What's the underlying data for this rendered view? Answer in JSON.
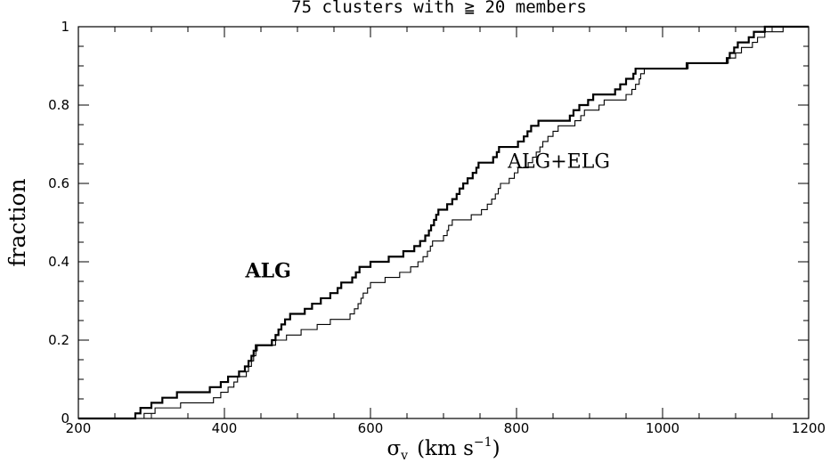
{
  "chart_data": {
    "type": "line",
    "title": "75 clusters with ≧ 20 members",
    "xlabel": {
      "symbol": "σ",
      "subscript": "v",
      "units_open": "(km s",
      "superscript": "−1",
      "units_close": ")"
    },
    "ylabel": "fraction",
    "xlim": [
      200,
      1200
    ],
    "ylim": [
      0,
      1
    ],
    "x_ticks": [
      "200",
      "400",
      "600",
      "800",
      "1000",
      "1200"
    ],
    "y_ticks": [
      "0",
      "0.2",
      "0.4",
      "0.6",
      "0.8",
      "1"
    ],
    "grid": false,
    "series": [
      {
        "name": "ALG",
        "style": "thick",
        "step": true,
        "points": [
          [
            200,
            0
          ],
          [
            278,
            0
          ],
          [
            278,
            0.013
          ],
          [
            285,
            0.013
          ],
          [
            285,
            0.027
          ],
          [
            300,
            0.027
          ],
          [
            300,
            0.04
          ],
          [
            315,
            0.04
          ],
          [
            315,
            0.053
          ],
          [
            335,
            0.053
          ],
          [
            335,
            0.067
          ],
          [
            380,
            0.067
          ],
          [
            380,
            0.08
          ],
          [
            395,
            0.08
          ],
          [
            395,
            0.093
          ],
          [
            405,
            0.093
          ],
          [
            405,
            0.107
          ],
          [
            420,
            0.107
          ],
          [
            420,
            0.12
          ],
          [
            428,
            0.12
          ],
          [
            428,
            0.133
          ],
          [
            433,
            0.133
          ],
          [
            433,
            0.147
          ],
          [
            437,
            0.147
          ],
          [
            437,
            0.16
          ],
          [
            440,
            0.16
          ],
          [
            440,
            0.173
          ],
          [
            443,
            0.173
          ],
          [
            443,
            0.187
          ],
          [
            465,
            0.187
          ],
          [
            465,
            0.2
          ],
          [
            470,
            0.2
          ],
          [
            470,
            0.213
          ],
          [
            474,
            0.213
          ],
          [
            474,
            0.227
          ],
          [
            478,
            0.227
          ],
          [
            478,
            0.24
          ],
          [
            483,
            0.24
          ],
          [
            483,
            0.253
          ],
          [
            490,
            0.253
          ],
          [
            490,
            0.267
          ],
          [
            510,
            0.267
          ],
          [
            510,
            0.28
          ],
          [
            520,
            0.28
          ],
          [
            520,
            0.293
          ],
          [
            532,
            0.293
          ],
          [
            532,
            0.307
          ],
          [
            545,
            0.307
          ],
          [
            545,
            0.32
          ],
          [
            555,
            0.32
          ],
          [
            555,
            0.333
          ],
          [
            560,
            0.333
          ],
          [
            560,
            0.347
          ],
          [
            575,
            0.347
          ],
          [
            575,
            0.36
          ],
          [
            580,
            0.36
          ],
          [
            580,
            0.373
          ],
          [
            585,
            0.373
          ],
          [
            585,
            0.387
          ],
          [
            600,
            0.387
          ],
          [
            600,
            0.4
          ],
          [
            625,
            0.4
          ],
          [
            625,
            0.413
          ],
          [
            645,
            0.413
          ],
          [
            645,
            0.427
          ],
          [
            660,
            0.427
          ],
          [
            660,
            0.44
          ],
          [
            668,
            0.44
          ],
          [
            668,
            0.453
          ],
          [
            675,
            0.453
          ],
          [
            675,
            0.467
          ],
          [
            680,
            0.467
          ],
          [
            680,
            0.48
          ],
          [
            683,
            0.48
          ],
          [
            683,
            0.493
          ],
          [
            687,
            0.493
          ],
          [
            687,
            0.507
          ],
          [
            690,
            0.507
          ],
          [
            690,
            0.52
          ],
          [
            693,
            0.52
          ],
          [
            693,
            0.533
          ],
          [
            705,
            0.533
          ],
          [
            705,
            0.547
          ],
          [
            712,
            0.547
          ],
          [
            712,
            0.56
          ],
          [
            718,
            0.56
          ],
          [
            718,
            0.573
          ],
          [
            722,
            0.573
          ],
          [
            722,
            0.587
          ],
          [
            727,
            0.587
          ],
          [
            727,
            0.6
          ],
          [
            733,
            0.6
          ],
          [
            733,
            0.613
          ],
          [
            740,
            0.613
          ],
          [
            740,
            0.627
          ],
          [
            745,
            0.627
          ],
          [
            745,
            0.64
          ],
          [
            748,
            0.64
          ],
          [
            748,
            0.653
          ],
          [
            768,
            0.653
          ],
          [
            768,
            0.667
          ],
          [
            773,
            0.667
          ],
          [
            773,
            0.68
          ],
          [
            776,
            0.68
          ],
          [
            776,
            0.693
          ],
          [
            802,
            0.693
          ],
          [
            802,
            0.707
          ],
          [
            810,
            0.707
          ],
          [
            810,
            0.72
          ],
          [
            815,
            0.72
          ],
          [
            815,
            0.733
          ],
          [
            820,
            0.733
          ],
          [
            820,
            0.747
          ],
          [
            830,
            0.747
          ],
          [
            830,
            0.76
          ],
          [
            873,
            0.76
          ],
          [
            873,
            0.773
          ],
          [
            878,
            0.773
          ],
          [
            878,
            0.787
          ],
          [
            886,
            0.787
          ],
          [
            886,
            0.8
          ],
          [
            898,
            0.8
          ],
          [
            898,
            0.813
          ],
          [
            905,
            0.813
          ],
          [
            905,
            0.827
          ],
          [
            935,
            0.827
          ],
          [
            935,
            0.84
          ],
          [
            942,
            0.84
          ],
          [
            942,
            0.853
          ],
          [
            950,
            0.853
          ],
          [
            950,
            0.867
          ],
          [
            960,
            0.867
          ],
          [
            960,
            0.88
          ],
          [
            963,
            0.88
          ],
          [
            963,
            0.893
          ],
          [
            1033,
            0.893
          ],
          [
            1033,
            0.907
          ],
          [
            1088,
            0.907
          ],
          [
            1088,
            0.92
          ],
          [
            1092,
            0.92
          ],
          [
            1092,
            0.933
          ],
          [
            1098,
            0.933
          ],
          [
            1098,
            0.947
          ],
          [
            1103,
            0.947
          ],
          [
            1103,
            0.96
          ],
          [
            1118,
            0.96
          ],
          [
            1118,
            0.973
          ],
          [
            1125,
            0.973
          ],
          [
            1125,
            0.987
          ],
          [
            1140,
            0.987
          ],
          [
            1140,
            1.0
          ],
          [
            1200,
            1.0
          ]
        ]
      },
      {
        "name": "ALG+ELG",
        "style": "thin",
        "step": true,
        "points": [
          [
            200,
            0
          ],
          [
            290,
            0
          ],
          [
            290,
            0.013
          ],
          [
            305,
            0.013
          ],
          [
            305,
            0.027
          ],
          [
            340,
            0.027
          ],
          [
            340,
            0.04
          ],
          [
            385,
            0.04
          ],
          [
            385,
            0.053
          ],
          [
            395,
            0.053
          ],
          [
            395,
            0.067
          ],
          [
            405,
            0.067
          ],
          [
            405,
            0.08
          ],
          [
            413,
            0.08
          ],
          [
            413,
            0.093
          ],
          [
            418,
            0.093
          ],
          [
            418,
            0.107
          ],
          [
            430,
            0.107
          ],
          [
            430,
            0.12
          ],
          [
            433,
            0.12
          ],
          [
            433,
            0.133
          ],
          [
            437,
            0.133
          ],
          [
            437,
            0.147
          ],
          [
            440,
            0.147
          ],
          [
            440,
            0.16
          ],
          [
            443,
            0.16
          ],
          [
            443,
            0.173
          ],
          [
            445,
            0.173
          ],
          [
            445,
            0.187
          ],
          [
            470,
            0.187
          ],
          [
            470,
            0.2
          ],
          [
            485,
            0.2
          ],
          [
            485,
            0.213
          ],
          [
            505,
            0.213
          ],
          [
            505,
            0.227
          ],
          [
            527,
            0.227
          ],
          [
            527,
            0.24
          ],
          [
            545,
            0.24
          ],
          [
            545,
            0.253
          ],
          [
            572,
            0.253
          ],
          [
            572,
            0.267
          ],
          [
            578,
            0.267
          ],
          [
            578,
            0.28
          ],
          [
            583,
            0.28
          ],
          [
            583,
            0.293
          ],
          [
            587,
            0.293
          ],
          [
            587,
            0.307
          ],
          [
            590,
            0.307
          ],
          [
            590,
            0.32
          ],
          [
            596,
            0.32
          ],
          [
            596,
            0.333
          ],
          [
            600,
            0.333
          ],
          [
            600,
            0.347
          ],
          [
            620,
            0.347
          ],
          [
            620,
            0.36
          ],
          [
            640,
            0.36
          ],
          [
            640,
            0.373
          ],
          [
            655,
            0.373
          ],
          [
            655,
            0.387
          ],
          [
            665,
            0.387
          ],
          [
            665,
            0.4
          ],
          [
            672,
            0.4
          ],
          [
            672,
            0.413
          ],
          [
            678,
            0.413
          ],
          [
            678,
            0.427
          ],
          [
            682,
            0.427
          ],
          [
            682,
            0.44
          ],
          [
            685,
            0.44
          ],
          [
            685,
            0.453
          ],
          [
            700,
            0.453
          ],
          [
            700,
            0.467
          ],
          [
            705,
            0.467
          ],
          [
            705,
            0.48
          ],
          [
            707,
            0.48
          ],
          [
            707,
            0.493
          ],
          [
            712,
            0.493
          ],
          [
            712,
            0.507
          ],
          [
            738,
            0.507
          ],
          [
            738,
            0.52
          ],
          [
            752,
            0.52
          ],
          [
            752,
            0.533
          ],
          [
            760,
            0.533
          ],
          [
            760,
            0.547
          ],
          [
            766,
            0.547
          ],
          [
            766,
            0.56
          ],
          [
            771,
            0.56
          ],
          [
            771,
            0.573
          ],
          [
            775,
            0.573
          ],
          [
            775,
            0.587
          ],
          [
            778,
            0.587
          ],
          [
            778,
            0.6
          ],
          [
            790,
            0.6
          ],
          [
            790,
            0.613
          ],
          [
            797,
            0.613
          ],
          [
            797,
            0.627
          ],
          [
            802,
            0.627
          ],
          [
            802,
            0.64
          ],
          [
            816,
            0.64
          ],
          [
            816,
            0.653
          ],
          [
            822,
            0.653
          ],
          [
            822,
            0.667
          ],
          [
            827,
            0.667
          ],
          [
            827,
            0.68
          ],
          [
            832,
            0.68
          ],
          [
            832,
            0.693
          ],
          [
            836,
            0.693
          ],
          [
            836,
            0.707
          ],
          [
            843,
            0.707
          ],
          [
            843,
            0.72
          ],
          [
            850,
            0.72
          ],
          [
            850,
            0.733
          ],
          [
            857,
            0.733
          ],
          [
            857,
            0.747
          ],
          [
            880,
            0.747
          ],
          [
            880,
            0.76
          ],
          [
            888,
            0.76
          ],
          [
            888,
            0.773
          ],
          [
            893,
            0.773
          ],
          [
            893,
            0.787
          ],
          [
            913,
            0.787
          ],
          [
            913,
            0.8
          ],
          [
            920,
            0.8
          ],
          [
            920,
            0.813
          ],
          [
            950,
            0.813
          ],
          [
            950,
            0.827
          ],
          [
            958,
            0.827
          ],
          [
            958,
            0.84
          ],
          [
            963,
            0.84
          ],
          [
            963,
            0.853
          ],
          [
            968,
            0.853
          ],
          [
            968,
            0.867
          ],
          [
            970,
            0.867
          ],
          [
            970,
            0.88
          ],
          [
            975,
            0.88
          ],
          [
            975,
            0.893
          ],
          [
            1035,
            0.893
          ],
          [
            1035,
            0.907
          ],
          [
            1090,
            0.907
          ],
          [
            1090,
            0.92
          ],
          [
            1100,
            0.92
          ],
          [
            1100,
            0.933
          ],
          [
            1108,
            0.933
          ],
          [
            1108,
            0.947
          ],
          [
            1123,
            0.947
          ],
          [
            1123,
            0.96
          ],
          [
            1130,
            0.96
          ],
          [
            1130,
            0.973
          ],
          [
            1140,
            0.973
          ],
          [
            1140,
            0.987
          ],
          [
            1165,
            0.987
          ],
          [
            1165,
            1.0
          ],
          [
            1200,
            1.0
          ]
        ]
      }
    ],
    "annotations": [
      {
        "text": "ALG",
        "series": "ALG",
        "at": [
          460,
          0.36
        ],
        "bold": true
      },
      {
        "text": "ALG+ELG",
        "series": "ALG+ELG",
        "at": [
          858,
          0.64
        ],
        "bold": false
      }
    ]
  }
}
